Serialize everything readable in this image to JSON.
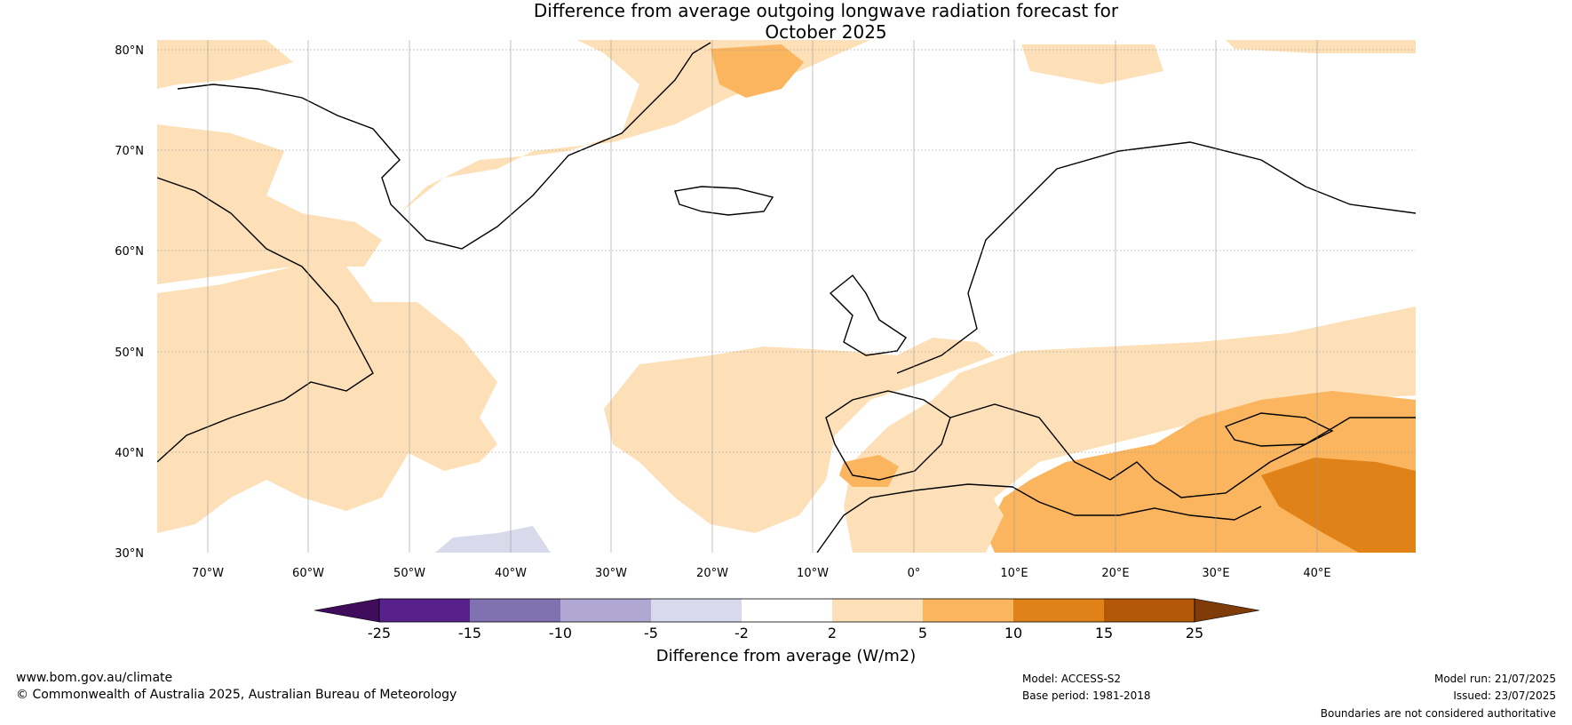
{
  "title_line1": "Difference from average outgoing longwave radiation forecast for",
  "title_line2": "October 2025",
  "lat_labels": [
    "80°N",
    "70°N",
    "60°N",
    "50°N",
    "40°N",
    "30°N"
  ],
  "lon_labels": [
    "70°W",
    "60°W",
    "50°W",
    "40°W",
    "30°W",
    "20°W",
    "10°W",
    "0°",
    "10°E",
    "20°E",
    "30°E",
    "40°E"
  ],
  "colorbar": {
    "ticks": [
      "-25",
      "-15",
      "-10",
      "-5",
      "-2",
      "2",
      "5",
      "10",
      "15",
      "25"
    ],
    "colors": [
      "#3f0d5c",
      "#57208a",
      "#8072b0",
      "#b0a8d2",
      "#d9d9ec",
      "#ffffff",
      "#fde0b8",
      "#fbb55e",
      "#e08218",
      "#b35806",
      "#7f3b08"
    ],
    "label": "Difference from average (W/m2)"
  },
  "footer": {
    "website": "www.bom.gov.au/climate",
    "copyright": "© Commonwealth of Australia 2025, Australian Bureau of Meteorology",
    "model": "Model: ACCESS-S2",
    "base_period": "Base period: 1981-2018",
    "model_run": "Model run: 21/07/2025",
    "issued": "Issued: 23/07/2025",
    "disclaimer": "Boundaries are not considered authoritative"
  }
}
